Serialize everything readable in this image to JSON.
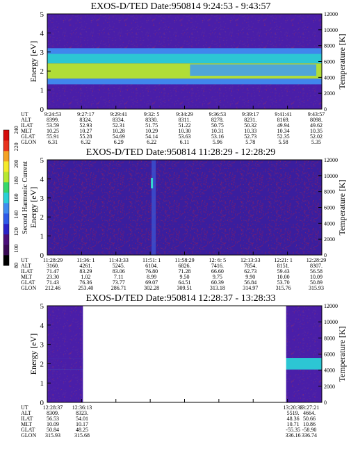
{
  "colorbar": {
    "label": "Second Harmonic Current",
    "ticks": [
      "80",
      "100",
      "120",
      "140",
      "160",
      "180",
      "200",
      "220",
      "240"
    ],
    "colors": [
      "#000000",
      "#3a0a55",
      "#4b0f7a",
      "#2a22c8",
      "#2e5ae8",
      "#3f8cf0",
      "#2ad0d6",
      "#36d86a",
      "#b6e830",
      "#f4ea2a",
      "#f4a224",
      "#e8321e",
      "#d40c0c"
    ]
  },
  "panels": [
    {
      "title": "EXOS-D/TED   Date:950814   9:24:53 - 9:43:57",
      "ylabel": "Energy [eV]",
      "y2label": "Temperature [K]",
      "yticks": [
        "0",
        "1",
        "2",
        "3",
        "4",
        "5"
      ],
      "y2ticks": [
        "0",
        "2000",
        "4000",
        "6000",
        "8000",
        "10000",
        "12000"
      ],
      "ephemeris": {
        "labels": [
          "UT",
          "ALT",
          "ILAT",
          "MLT",
          "GLAT",
          "GLON"
        ],
        "columns": [
          [
            "9:24:53",
            "8399.",
            "53.59",
            "10.25",
            "55.91",
            "6.31"
          ],
          [
            "9:27:17",
            "8324.",
            "52.93",
            "10.27",
            "55.28",
            "6.32"
          ],
          [
            "9:29:41",
            "8334.",
            "52.31",
            "10.28",
            "54.69",
            "6.29"
          ],
          [
            "9:32: 5",
            "8330.",
            "51.75",
            "10.29",
            "54.14",
            "6.22"
          ],
          [
            "9:34:29",
            "8311.",
            "51.22",
            "10.30",
            "53.63",
            "6.11"
          ],
          [
            "9:36:53",
            "8278.",
            "50.75",
            "10.31",
            "53.16",
            "5.96"
          ],
          [
            "9:39:17",
            "8231.",
            "50.32",
            "10.33",
            "52.73",
            "5.78"
          ],
          [
            "9:41:41",
            "8169.",
            "49.94",
            "10.34",
            "52.35",
            "5.58"
          ],
          [
            "9:43:57",
            "8098.",
            "49.62",
            "10.35",
            "52.02",
            "5.35"
          ]
        ]
      },
      "data_gaps": []
    },
    {
      "title": "EXOS-D/TED   Date:950814   11:28:29 - 12:28:29",
      "ylabel": "Energy [eV]",
      "y2label": "Temperature [K]",
      "yticks": [
        "0",
        "1",
        "2",
        "3",
        "4",
        "5"
      ],
      "y2ticks": [
        "0",
        "2000",
        "4000",
        "6000",
        "8000",
        "10000",
        "12000"
      ],
      "ephemeris": {
        "labels": [
          "UT",
          "ALT",
          "ILAT",
          "MLT",
          "GLAT",
          "GLON"
        ],
        "columns": [
          [
            "11:28:29",
            "3160.",
            "71.47",
            "23.30",
            "71.43",
            "212.46"
          ],
          [
            "11:36: 1",
            "4261.",
            "83.29",
            "1.02",
            "76.36",
            "253.40"
          ],
          [
            "11:43:33",
            "5245.",
            "83.06",
            "7.11",
            "73.77",
            "286.71"
          ],
          [
            "11:51: 1",
            "6104.",
            "76.80",
            "8.99",
            "69.07",
            "302.28"
          ],
          [
            "11:58:29",
            "6826.",
            "71.28",
            "9.50",
            "64.51",
            "309.51"
          ],
          [
            "12: 6: 5",
            "7416.",
            "66.60",
            "9.75",
            "60.39",
            "313.18"
          ],
          [
            "12:13:33",
            "7854.",
            "62.73",
            "9.90",
            "56.84",
            "314.97"
          ],
          [
            "12:21: 1",
            "8151.",
            "59.43",
            "10.00",
            "53.70",
            "315.76"
          ],
          [
            "12:28:29",
            "8307.",
            "56.58",
            "10.09",
            "50.89",
            "315.93"
          ]
        ]
      },
      "data_gaps": []
    },
    {
      "title": "EXOS-D/TED   Date:950814   12:28:37 - 13:28:33",
      "ylabel": "Energy [eV]",
      "y2label": "Temperature [K]",
      "yticks": [
        "0",
        "1",
        "2",
        "3",
        "4",
        "5"
      ],
      "y2ticks": [
        "0",
        "2000",
        "4000",
        "6000",
        "8000",
        "10000",
        "12000"
      ],
      "ephemeris": {
        "labels": [
          "UT",
          "ALT",
          "ILAT",
          "MLT",
          "GLAT",
          "GLON"
        ],
        "columns": [
          [
            "12:28:37",
            "8309.",
            "56.53",
            "10.09",
            "50.84",
            "315.93"
          ],
          [
            "12:36:13",
            "8323.",
            "54.01",
            "10.17",
            "48.25",
            "315.68"
          ],
          [
            "13:20:33",
            "5519.",
            "48.36",
            "10.71",
            "-55.35",
            "336.16"
          ],
          [
            "13:27:21",
            "4664.",
            "50.66",
            "10.86",
            "-58.90",
            "336.74"
          ]
        ]
      },
      "data_gaps": [
        [
          0.13,
          0.87
        ]
      ]
    }
  ],
  "chart_data": [
    {
      "type": "heatmap",
      "title": "EXOS-D/TED   Date:950814   9:24:53 - 9:43:57",
      "xlabel": "UT",
      "ylabel": "Energy [eV]",
      "y2label": "Temperature [K]",
      "x_range": [
        "9:24:53",
        "9:43:57"
      ],
      "ylim": [
        0,
        5
      ],
      "y2lim": [
        0,
        12000
      ],
      "colorbar_label": "Second Harmonic Current",
      "colorbar_range": [
        80,
        240
      ],
      "bands": [
        {
          "energy_range": [
            2.9,
            3.2
          ],
          "level": 150
        },
        {
          "energy_range": [
            2.4,
            2.9
          ],
          "level": 165
        },
        {
          "energy_range": [
            1.6,
            2.4
          ],
          "level": 180
        },
        {
          "energy_range": [
            1.3,
            1.6
          ],
          "level": 150
        }
      ]
    },
    {
      "type": "heatmap",
      "title": "EXOS-D/TED   Date:950814   11:28:29 - 12:28:29",
      "xlabel": "UT",
      "ylabel": "Energy [eV]",
      "y2label": "Temperature [K]",
      "x_range": [
        "11:28:29",
        "12:28:29"
      ],
      "ylim": [
        0,
        5
      ],
      "y2lim": [
        0,
        12000
      ],
      "colorbar_label": "Second Harmonic Current",
      "colorbar_range": [
        80,
        240
      ],
      "bands": []
    },
    {
      "type": "heatmap",
      "title": "EXOS-D/TED   Date:950814   12:28:37 - 13:28:33",
      "xlabel": "UT",
      "ylabel": "Energy [eV]",
      "y2label": "Temperature [K]",
      "x_range": [
        "12:28:37",
        "13:28:33"
      ],
      "ylim": [
        0,
        5
      ],
      "y2lim": [
        0,
        12000
      ],
      "colorbar_label": "Second Harmonic Current",
      "colorbar_range": [
        80,
        240
      ],
      "bands": [
        {
          "energy_range": [
            1.7,
            2.3
          ],
          "level": 165
        }
      ]
    }
  ]
}
